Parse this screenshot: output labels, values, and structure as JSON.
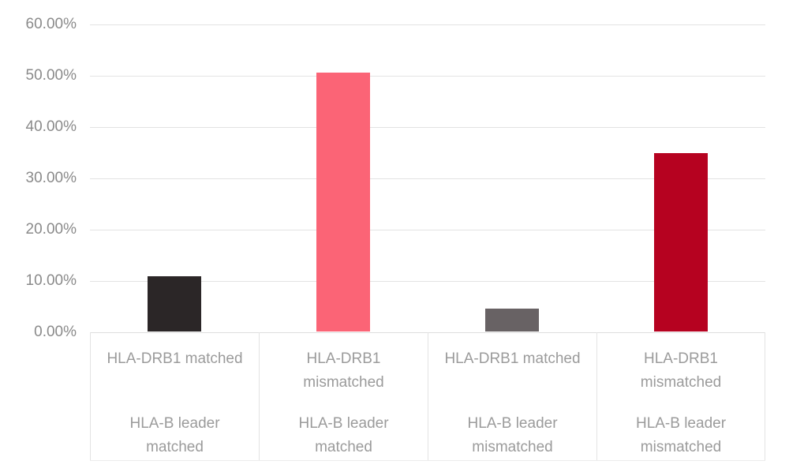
{
  "chart_data": {
    "type": "bar",
    "title": "",
    "xlabel": "",
    "ylabel": "",
    "ylim": [
      0,
      60
    ],
    "grid": true,
    "legend": false,
    "value_format": "percent",
    "ytick_labels": [
      "60.00%",
      "50.00%",
      "40.00%",
      "30.00%",
      "20.00%",
      "10.00%",
      "0.00%"
    ],
    "categories": [
      {
        "top": "HLA-DRB1 matched",
        "bottom": "HLA-B leader\nmatched"
      },
      {
        "top": "HLA-DRB1\nmismatched",
        "bottom": "HLA-B leader\nmatched"
      },
      {
        "top": "HLA-DRB1 matched",
        "bottom": "HLA-B leader\nmismatched"
      },
      {
        "top": "HLA-DRB1\nmismatched",
        "bottom": "HLA-B leader\nmismatched"
      }
    ],
    "values": [
      10.8,
      50.4,
      4.5,
      34.8
    ],
    "bar_colors": [
      "#2b2627",
      "#fb6476",
      "#686264",
      "#b60220"
    ]
  },
  "colors": {
    "gridline": "#e3e3e3",
    "axis_text_y": "#8a8a8a",
    "axis_text_x": "#9b9b9b",
    "background": "#ffffff"
  }
}
